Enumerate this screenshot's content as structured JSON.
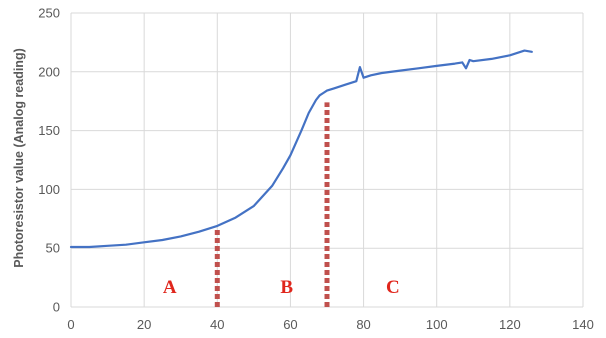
{
  "chart_data": {
    "type": "line",
    "title": "",
    "xlabel": "",
    "ylabel": "Photoresistor value (Analog reading)",
    "xlim": [
      0,
      140
    ],
    "ylim": [
      0,
      250
    ],
    "xticks": [
      0,
      20,
      40,
      60,
      80,
      100,
      120,
      140
    ],
    "yticks": [
      0,
      50,
      100,
      150,
      200,
      250
    ],
    "x_tick_labels": [
      "0",
      "20",
      "40",
      "60",
      "80",
      "100",
      "120",
      "140"
    ],
    "y_tick_labels": [
      "0",
      "50",
      "100",
      "150",
      "200",
      "250"
    ],
    "grid": true,
    "legend": "none",
    "colors": {
      "line": "#4472c4",
      "marker": "#c0504d",
      "region_label": "#e0261c",
      "grid": "#d9d9d9",
      "tick_text": "#595959"
    },
    "series": [
      {
        "x": [
          0,
          5,
          10,
          15,
          20,
          25,
          30,
          35,
          40,
          45,
          50,
          55,
          58,
          60,
          63,
          65,
          67,
          68,
          69,
          70,
          72,
          75,
          78,
          79,
          80,
          82,
          85,
          90,
          95,
          100,
          105,
          107,
          108,
          109,
          110,
          115,
          120,
          124,
          126
        ],
        "y": [
          51,
          51,
          52,
          53,
          55,
          57,
          60,
          64,
          69,
          76,
          86,
          103,
          118,
          129,
          150,
          165,
          176,
          180,
          182,
          184,
          186,
          189,
          192,
          204,
          195,
          197,
          199,
          201,
          203,
          205,
          207,
          208,
          203,
          210,
          209,
          211,
          214,
          218,
          217
        ]
      }
    ],
    "markers": [
      {
        "x": 40,
        "y_top": 67
      },
      {
        "x": 70,
        "y_top": 174
      }
    ],
    "region_labels": [
      {
        "text": "A",
        "x": 27,
        "y": 18
      },
      {
        "text": "B",
        "x": 59,
        "y": 18
      },
      {
        "text": "C",
        "x": 88,
        "y": 18
      }
    ]
  }
}
